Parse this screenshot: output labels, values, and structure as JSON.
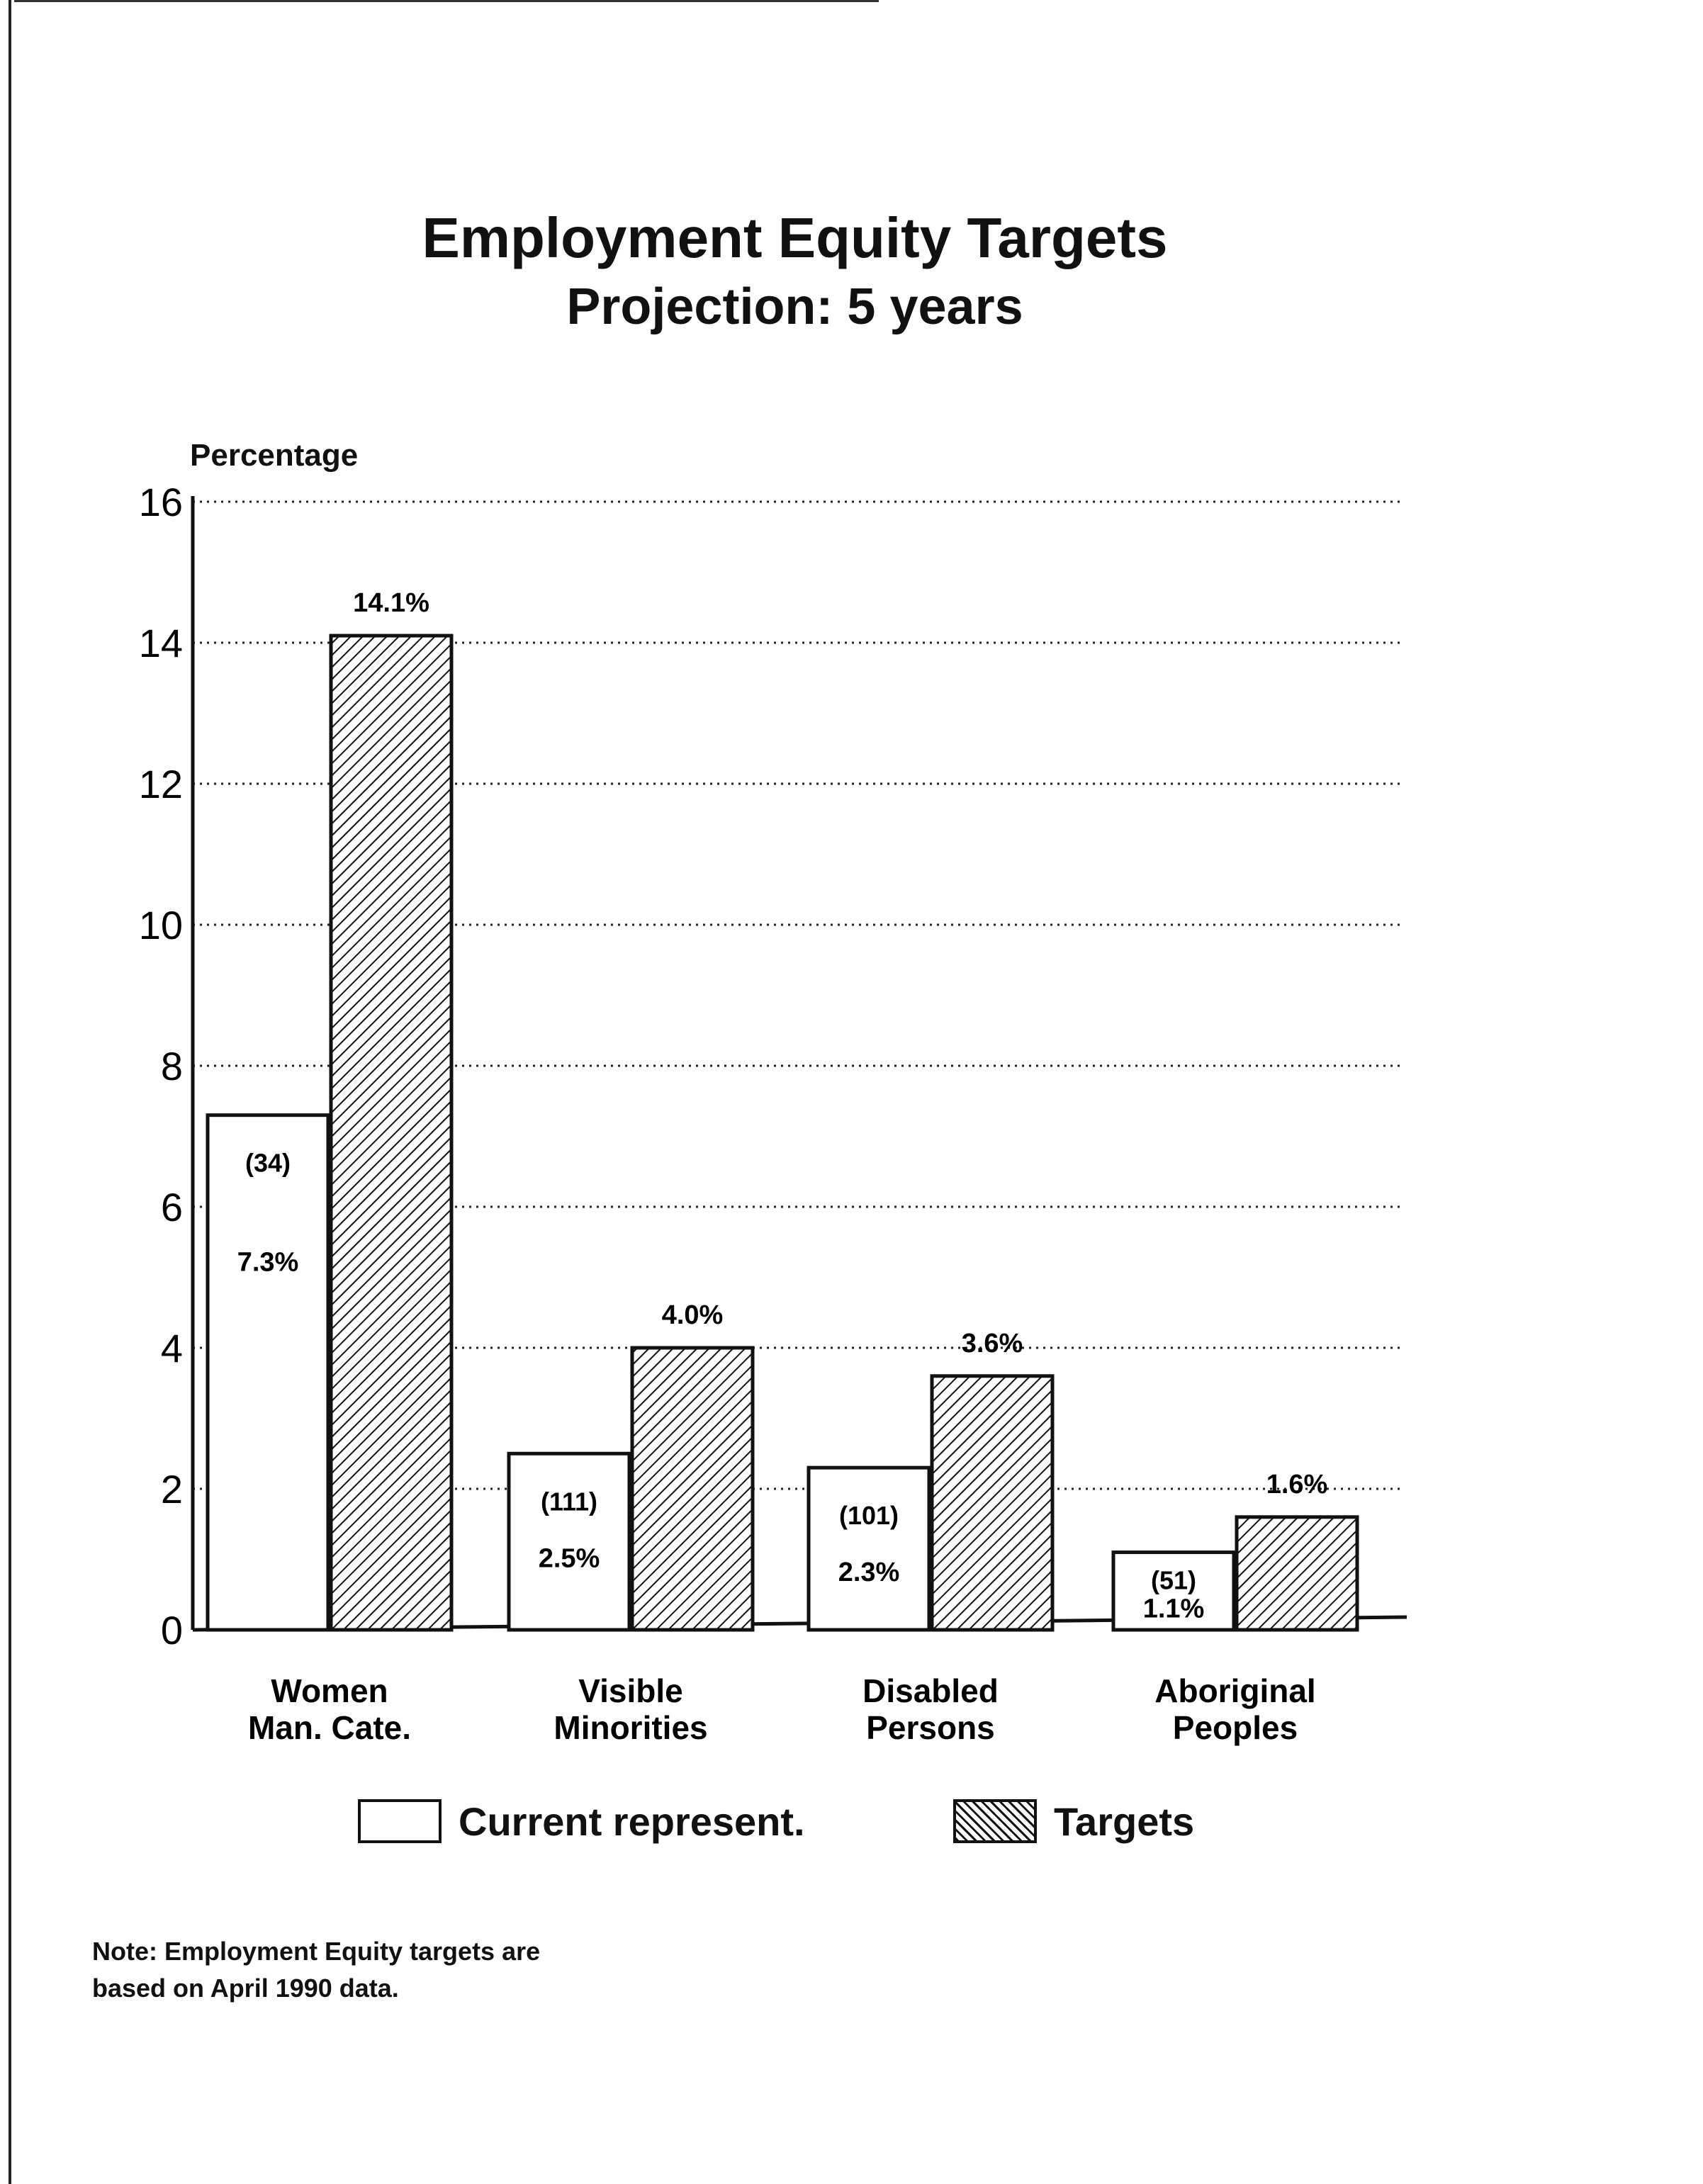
{
  "chart_data": {
    "type": "bar",
    "title": "Employment Equity Targets",
    "subtitle": "Projection: 5 years",
    "ylabel": "Percentage",
    "xlabel": "",
    "ylim": [
      0,
      16
    ],
    "yticks": [
      0,
      2,
      4,
      6,
      8,
      10,
      12,
      14,
      16
    ],
    "grid": "horizontal dotted",
    "legend_position": "bottom",
    "categories": [
      [
        "Women",
        "Man. Cate."
      ],
      [
        "Visible",
        "Minorities"
      ],
      [
        "Disabled",
        "Persons"
      ],
      [
        "Aboriginal",
        "Peoples"
      ]
    ],
    "series": [
      {
        "name": "Current represent.",
        "style": "white",
        "values": [
          7.3,
          2.5,
          2.3,
          1.1
        ],
        "labels": [
          "7.3%",
          "2.5%",
          "2.3%",
          "1.1%"
        ],
        "counts": [
          "(34)",
          "(111)",
          "(101)",
          "(51)"
        ]
      },
      {
        "name": "Targets",
        "style": "hatched",
        "values": [
          14.1,
          4.0,
          3.6,
          1.6
        ],
        "labels": [
          "14.1%",
          "4.0%",
          "3.6%",
          "1.6%"
        ]
      }
    ]
  },
  "note": {
    "line1": "Note: Employment Equity targets are",
    "line2": "based on April 1990 data."
  },
  "colors": {
    "ink": "#111111",
    "background": "#ffffff"
  }
}
